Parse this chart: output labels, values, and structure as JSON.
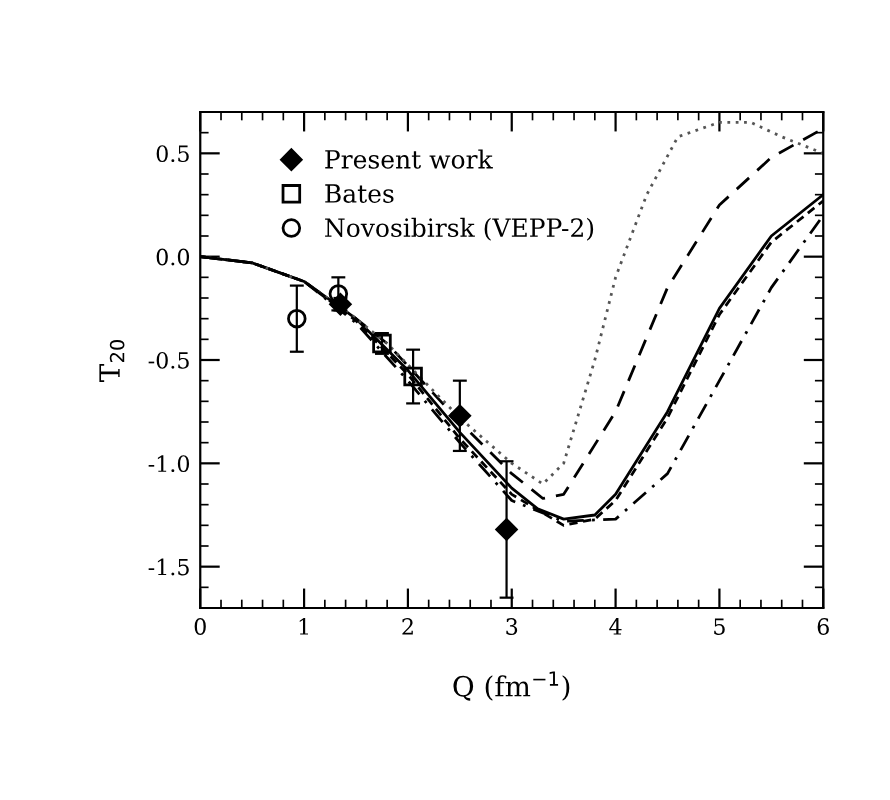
{
  "chart_data": {
    "type": "line",
    "xlabel": "Q (fm$^{−1}$)",
    "ylabel": "T$_{20}$",
    "xlim": [
      0,
      6
    ],
    "ylim": [
      -1.7,
      0.7
    ],
    "xticks": [
      0,
      1,
      2,
      3,
      4,
      5,
      6
    ],
    "yticks": [
      {
        "value": -1.5,
        "label": "-1.5"
      },
      {
        "value": -1.0,
        "label": "-1.0"
      },
      {
        "value": -0.5,
        "label": "-0.5"
      },
      {
        "value": 0.0,
        "label": "0.0"
      },
      {
        "value": 0.5,
        "label": "0.5"
      }
    ],
    "grid": false,
    "legend": "top left",
    "series": [
      {
        "name": "Present work",
        "type": "scatter",
        "marker": "diamond",
        "color": "#000000",
        "x": [
          1.35,
          2.5,
          2.95
        ],
        "values": [
          -0.23,
          -0.77,
          -1.32
        ],
        "errors": [
          0.03,
          0.17,
          0.33
        ]
      },
      {
        "name": "Bates",
        "type": "scatter",
        "marker": "square",
        "color": "#000000",
        "x": [
          1.75,
          2.05
        ],
        "values": [
          -0.42,
          -0.58
        ],
        "errors": [
          0.05,
          0.13
        ]
      },
      {
        "name": "Novosibirsk (VEPP-2)",
        "type": "scatter",
        "marker": "circle",
        "color": "#000000",
        "x": [
          0.93,
          1.33
        ],
        "values": [
          -0.3,
          -0.18
        ],
        "errors": [
          0.16,
          0.08
        ]
      },
      {
        "line_style": "solid",
        "color": "#000000",
        "x": [
          0,
          0.5,
          1,
          1.5,
          2,
          2.5,
          3,
          3.25,
          3.5,
          3.8,
          4,
          4.5,
          5,
          5.5,
          6
        ],
        "values": [
          0,
          -0.03,
          -0.12,
          -0.3,
          -0.55,
          -0.85,
          -1.12,
          -1.22,
          -1.27,
          -1.25,
          -1.15,
          -0.75,
          -0.25,
          0.1,
          0.3
        ]
      },
      {
        "line_style": "dashed",
        "color": "#000000",
        "x": [
          0,
          0.5,
          1,
          1.5,
          1.8,
          2.5,
          3,
          3.3,
          3.5,
          4,
          4.5,
          5,
          5.5,
          6
        ],
        "values": [
          0,
          -0.03,
          -0.12,
          -0.3,
          -0.42,
          -0.8,
          -1.05,
          -1.17,
          -1.15,
          -0.75,
          -0.15,
          0.25,
          0.48,
          0.62
        ]
      },
      {
        "line_style": "dotted",
        "color": "#555555",
        "x": [
          0,
          0.5,
          1,
          1.5,
          1.8,
          2.5,
          3,
          3.3,
          3.5,
          3.8,
          4,
          4.3,
          4.6,
          5,
          5.3,
          5.6,
          6
        ],
        "values": [
          0,
          -0.03,
          -0.12,
          -0.3,
          -0.42,
          -0.78,
          -1.0,
          -1.1,
          -1.0,
          -0.5,
          -0.1,
          0.3,
          0.58,
          0.65,
          0.65,
          0.58,
          0.5
        ]
      },
      {
        "line_style": "short_dashed",
        "color": "#000000",
        "x": [
          0,
          0.5,
          1,
          1.5,
          2,
          2.5,
          3,
          3.5,
          3.8,
          4,
          4.5,
          5,
          5.5,
          6
        ],
        "values": [
          0,
          -0.03,
          -0.12,
          -0.31,
          -0.57,
          -0.88,
          -1.15,
          -1.3,
          -1.27,
          -1.18,
          -0.78,
          -0.28,
          0.07,
          0.27
        ]
      },
      {
        "line_style": "dashdot",
        "color": "#000000",
        "x": [
          0,
          0.5,
          1,
          1.5,
          2,
          2.5,
          3,
          3.5,
          4,
          4.5,
          5,
          5.5,
          6
        ],
        "values": [
          0,
          -0.03,
          -0.12,
          -0.32,
          -0.6,
          -0.9,
          -1.18,
          -1.28,
          -1.27,
          -1.05,
          -0.6,
          -0.15,
          0.2
        ]
      }
    ]
  }
}
